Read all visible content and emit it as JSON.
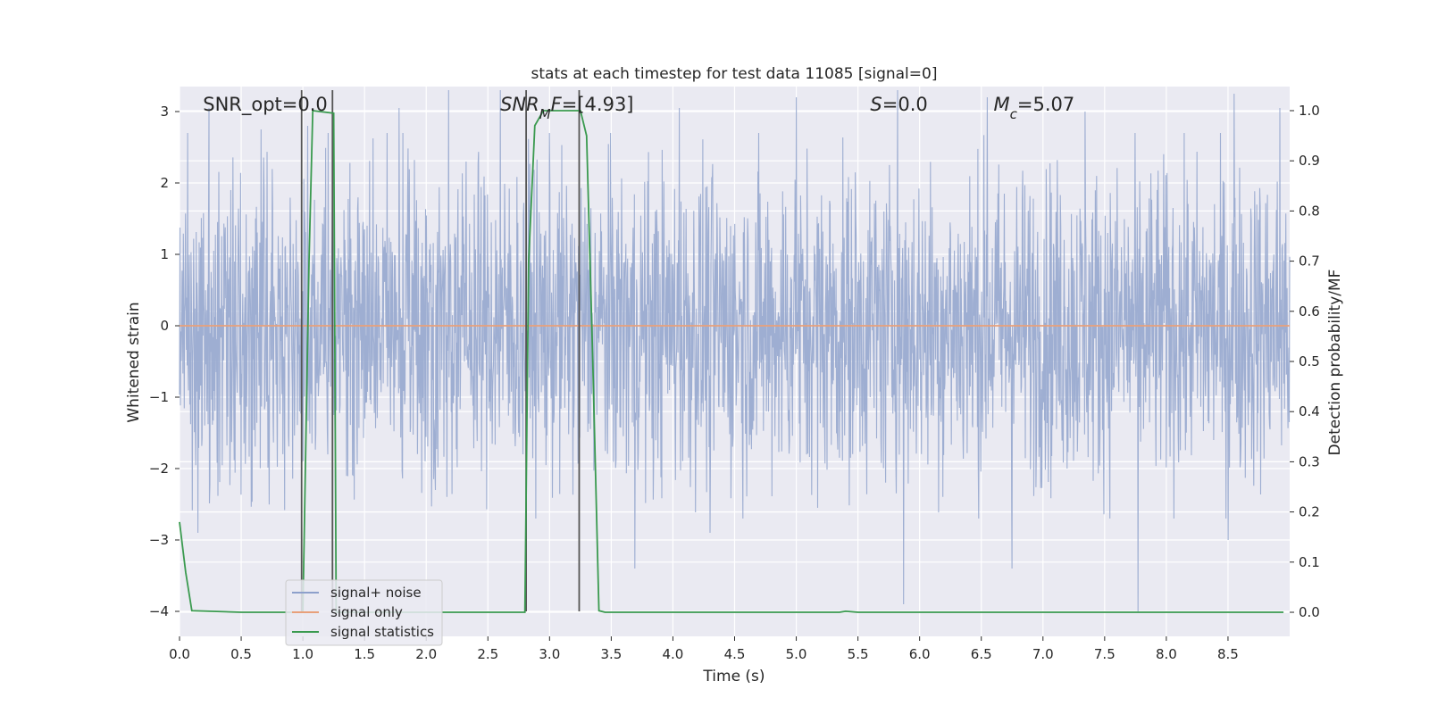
{
  "chart_data": {
    "type": "line",
    "title": "stats at each timestep for test data 11085 [signal=0]",
    "xlabel": "Time (s)",
    "ylabel": "Whitened strain",
    "y2label": "Detection probability/MF",
    "xlim": [
      0,
      9.0
    ],
    "ylim": [
      -4.35,
      3.35
    ],
    "y2lim": [
      -0.048,
      1.048
    ],
    "grid": true,
    "xticks": [
      0.0,
      0.5,
      1.0,
      1.5,
      2.0,
      2.5,
      3.0,
      3.5,
      4.0,
      4.5,
      5.0,
      5.5,
      6.0,
      6.5,
      7.0,
      7.5,
      8.0,
      8.5
    ],
    "xtick_labels": [
      "0.0",
      "0.5",
      "1.0",
      "1.5",
      "2.0",
      "2.5",
      "3.0",
      "3.5",
      "4.0",
      "4.5",
      "5.0",
      "5.5",
      "6.0",
      "6.5",
      "7.0",
      "7.5",
      "8.0",
      "8.5"
    ],
    "yticks": [
      3,
      2,
      1,
      0,
      -1,
      -2,
      -3,
      -4
    ],
    "ytick_labels": [
      "3",
      "2",
      "1",
      "0",
      "−1",
      "−2",
      "−3",
      "−4"
    ],
    "y2ticks": [
      1.0,
      0.9,
      0.8,
      0.7,
      0.6,
      0.5,
      0.4,
      0.3,
      0.2,
      0.1,
      0.0
    ],
    "y2tick_labels": [
      "1.0",
      "0.9",
      "0.8",
      "0.7",
      "0.6",
      "0.5",
      "0.4",
      "0.3",
      "0.2",
      "0.1",
      "0.0"
    ],
    "annotations": [
      {
        "text": "SNR_opt=0.0",
        "x": 0.19,
        "y": 3.35
      },
      {
        "text": "SNR_MF=[4.93]",
        "x": 2.6,
        "y": 3.35
      },
      {
        "text": "S=0.0",
        "x": 5.6,
        "y": 3.35
      },
      {
        "text": "M_c=5.07",
        "x": 6.6,
        "y": 3.35
      }
    ],
    "legend": {
      "placement": "lower-left",
      "entries": [
        {
          "label": "signal+ noise",
          "color": "#8da0cb"
        },
        {
          "label": "signal only",
          "color": "#e8a07a"
        },
        {
          "label": "signal statistics",
          "color": "#3a9a4f"
        }
      ]
    },
    "series": [
      {
        "name": "signal+ noise",
        "color": "#9aabd0",
        "axis": "left",
        "kind": "noise",
        "x_range": [
          0,
          9.0
        ],
        "typical_amplitude": 1.8,
        "peaks": [
          {
            "x": 0.24,
            "y": 3.05
          },
          {
            "x": 0.66,
            "y": 2.75
          },
          {
            "x": 1.04,
            "y": 2.8
          },
          {
            "x": 1.78,
            "y": 3.05
          },
          {
            "x": 2.18,
            "y": 3.3
          },
          {
            "x": 2.6,
            "y": 3.3
          },
          {
            "x": 4.05,
            "y": 3.05
          },
          {
            "x": 5.0,
            "y": 3.2
          },
          {
            "x": 5.82,
            "y": 3.3
          },
          {
            "x": 6.55,
            "y": 3.2
          },
          {
            "x": 7.34,
            "y": 3.0
          },
          {
            "x": 8.55,
            "y": 3.25
          },
          {
            "x": 8.92,
            "y": 3.05
          },
          {
            "x": 0.15,
            "y": -2.9
          },
          {
            "x": 3.69,
            "y": -3.4
          },
          {
            "x": 5.87,
            "y": -3.9
          },
          {
            "x": 6.75,
            "y": -3.4
          },
          {
            "x": 7.77,
            "y": -4.0
          },
          {
            "x": 4.3,
            "y": -2.9
          },
          {
            "x": 8.5,
            "y": -3.0
          }
        ]
      },
      {
        "name": "signal only",
        "color": "#e8a07a",
        "axis": "left",
        "x": [
          0,
          9.0
        ],
        "y": [
          0,
          0
        ]
      },
      {
        "name": "signal statistics",
        "color": "#3a9a4f",
        "axis": "right",
        "x": [
          0,
          0.05,
          0.1,
          0.5,
          0.98,
          1.0,
          1.05,
          1.08,
          1.25,
          1.27,
          1.33,
          1.4,
          2.5,
          2.8,
          2.83,
          2.88,
          2.95,
          3.0,
          3.25,
          3.3,
          3.35,
          3.4,
          3.45,
          4.0,
          5.0,
          5.35,
          5.4,
          5.5,
          6.0,
          7.0,
          8.0,
          8.95
        ],
        "y": [
          0.18,
          0.08,
          0.003,
          0.0,
          0.0,
          0.0,
          0.7,
          1.0,
          0.995,
          0.0,
          0.0,
          0.0,
          0.0,
          0.0,
          0.7,
          0.97,
          1.0,
          1.0,
          1.0,
          0.95,
          0.5,
          0.003,
          0.0,
          0.0,
          0.0,
          0.0,
          0.002,
          0.0,
          0.0,
          0.0,
          0.0,
          0.0
        ]
      }
    ],
    "vertical_lines": [
      {
        "x": 0.99,
        "y_from": -4.0,
        "y_to": 3.3
      },
      {
        "x": 1.24,
        "y_from": -4.0,
        "y_to": 3.3
      },
      {
        "x": 2.81,
        "y_from": -4.0,
        "y_to": 3.3
      },
      {
        "x": 3.24,
        "y_from": -4.0,
        "y_to": 3.3
      }
    ]
  }
}
